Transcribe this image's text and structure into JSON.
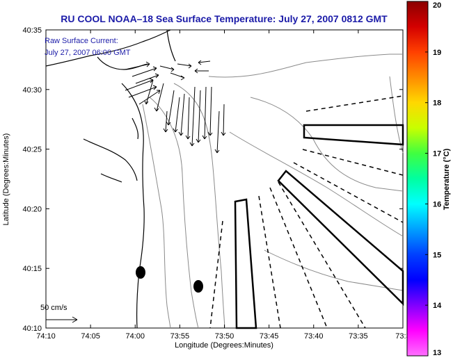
{
  "title": "RU COOL  NOAA–18  Sea Surface Temperature:  July 27, 2007 0812 GMT",
  "current_note": {
    "line1": "Raw Surface Current:",
    "line2": "July 27, 2007 06:00 GMT"
  },
  "axes": {
    "xlabel": "Longitude (Degrees:Minutes)",
    "ylabel": "Latitude (Degrees:Minutes)",
    "xticks": [
      "74:10",
      "74:05",
      "74:00",
      "73:55",
      "73:50",
      "73:45",
      "73:40",
      "73:35",
      "73:3"
    ],
    "yticks": [
      "40:35",
      "40:30",
      "40:25",
      "40:20",
      "40:15",
      "40:10"
    ]
  },
  "colorbar": {
    "label": "Temperature (°C)",
    "ticks": [
      "20",
      "19",
      "18",
      "17",
      "16",
      "15",
      "14",
      "13"
    ],
    "colors": [
      "#8b0000",
      "#d40000",
      "#ff4000",
      "#ff8c00",
      "#ffd800",
      "#c8ff00",
      "#40ff40",
      "#00ffa0",
      "#00ffff",
      "#00a0ff",
      "#0040ff",
      "#0000ff",
      "#8000ff",
      "#ff00ff",
      "#ff70ff"
    ]
  },
  "scale": {
    "label": "50 cm/s"
  },
  "colors": {
    "title": "#1b1ba8",
    "coast": "#000000",
    "bathymetry": "#8a8a8a"
  }
}
